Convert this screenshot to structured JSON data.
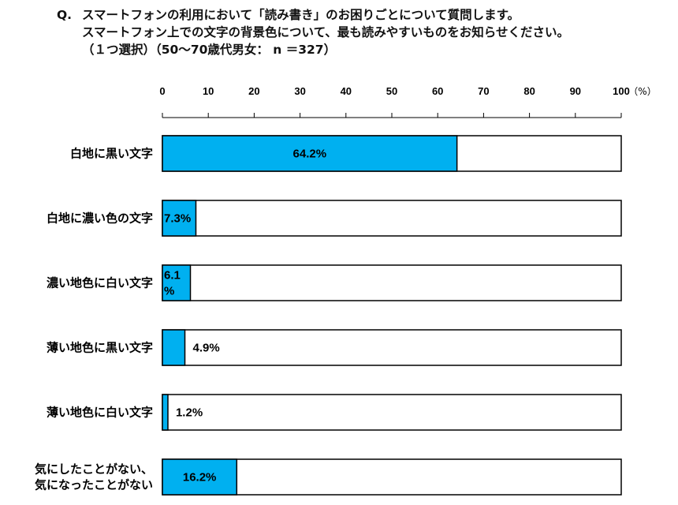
{
  "question": {
    "prefix": "Q.",
    "line1": "スマートフォンの利用において「読み書き」のお困りごとについて質問します。",
    "line2": "スマートフォン上での文字の背景色について、最も読みやすいものをお知らせください。",
    "line3": "（１つ選択）（50～70歳代男女： n ＝327）"
  },
  "chart_data": {
    "type": "bar",
    "orientation": "horizontal",
    "categories": [
      [
        "白地に黒い文字"
      ],
      [
        "白地に濃い色の文字"
      ],
      [
        "濃い地色に白い文字"
      ],
      [
        "薄い地色に黒い文字"
      ],
      [
        "薄い地色に白い文字"
      ],
      [
        "気にしたことがない、",
        "気になったことがない"
      ]
    ],
    "values": [
      64.2,
      7.3,
      6.1,
      4.9,
      1.2,
      16.2
    ],
    "value_labels": [
      [
        "64.2%"
      ],
      [
        "7.3%"
      ],
      [
        "6.1",
        "%"
      ],
      [
        "4.9%"
      ],
      [
        "1.2%"
      ],
      [
        "16.2%"
      ]
    ],
    "label_position": [
      "inside-center",
      "inside",
      "inside",
      "outside",
      "outside",
      "inside-center"
    ],
    "xlim": [
      0,
      100
    ],
    "ticks": [
      "0",
      "10",
      "20",
      "30",
      "40",
      "50",
      "60",
      "70",
      "80",
      "90",
      "100"
    ],
    "unit": "（%）",
    "bar_color": "#00b0f0",
    "track_color": "#ffffff",
    "border_color": "#000000"
  }
}
